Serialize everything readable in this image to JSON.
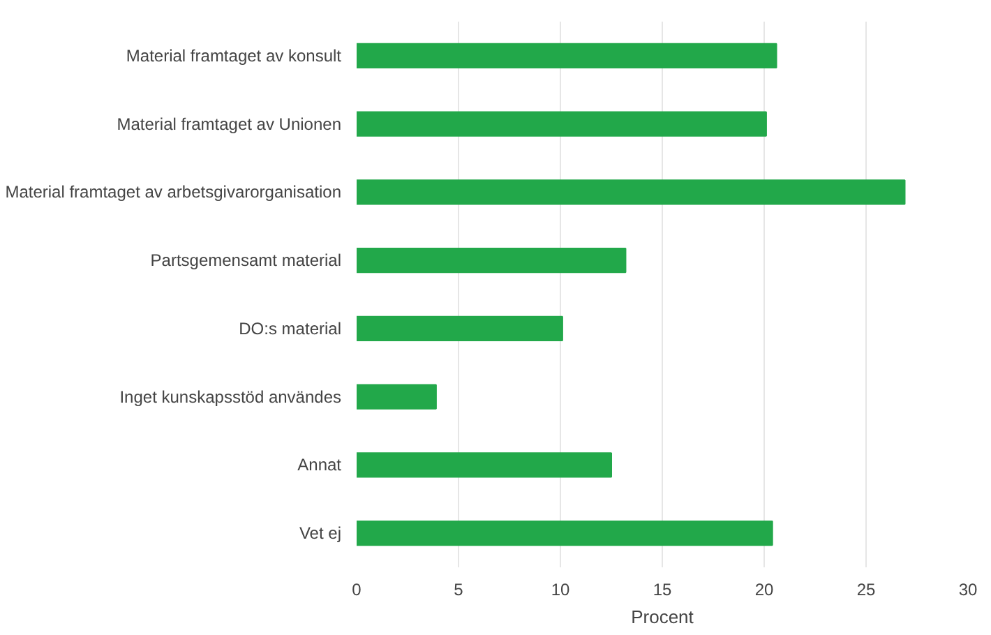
{
  "chart_data": {
    "type": "bar",
    "orientation": "horizontal",
    "xlabel": "Procent",
    "categories": [
      "Material framtaget av konsult",
      "Material framtaget av Unionen",
      "Material framtaget av arbetsgivarorganisation",
      "Partsgemensamt material",
      "DO:s material",
      "Inget kunskapsstöd användes",
      "Annat",
      "Vet ej"
    ],
    "values": [
      20.6,
      20.1,
      26.9,
      13.2,
      10.1,
      3.9,
      12.5,
      20.4
    ],
    "color": "#22a84a",
    "xlim": [
      0,
      30
    ],
    "xticks": [
      0,
      5,
      10,
      15,
      20,
      25,
      30
    ],
    "grid": "x"
  }
}
